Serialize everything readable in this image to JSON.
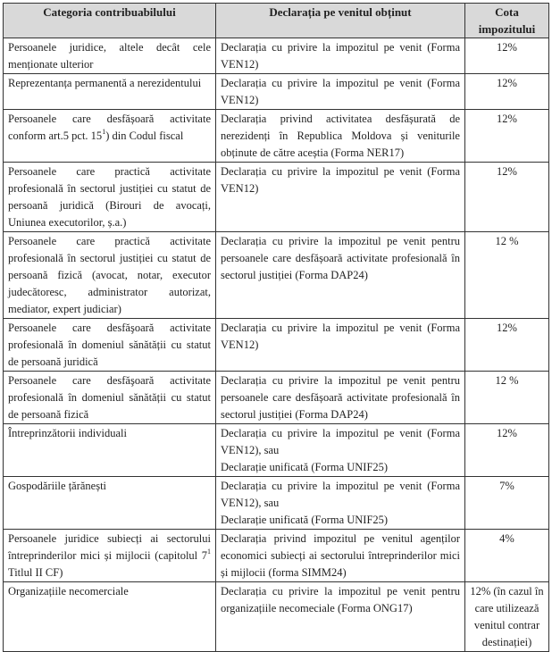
{
  "headers": [
    "Categoria contribuabilului",
    "Declarația pe venitul obținut",
    "Cota impozitului"
  ],
  "rows": [
    {
      "category": "Persoanele juridice, altele decât cele menționate ulterior",
      "declaration": "Declarația cu privire la impozitul pe venit (Forma VEN12)",
      "rate": "12%"
    },
    {
      "category": "Reprezentanța permanentă a nerezidentului",
      "declaration": "Declarația cu privire la impozitul pe venit (Forma VEN12)",
      "rate": "12%"
    },
    {
      "category_before": "Persoanele care desfășoară activitate conform art.5 pct. 15",
      "category_sup": "1",
      "category_after": ") din Codul fiscal",
      "declaration": "Declarația privind activitatea desfășurată de nerezidenți în Republica Moldova și veniturile obținute de către aceștia (Forma NER17)",
      "rate": "12%"
    },
    {
      "category": "Persoanele care practică activitate profesională în sectorul justiției cu statut de persoană juridică (Birouri de avocați, Uniunea executorilor, ș.a.)",
      "declaration": "Declarația cu privire la impozitul pe venit (Forma VEN12)",
      "rate": "12%"
    },
    {
      "category": "Persoanele care practică activitate profesională în sectorul justiției cu statut de persoană fizică (avocat, notar, executor judecătoresc, administrator autorizat, mediator, expert judiciar)",
      "declaration": "Declarația cu privire la impozitul pe venit pentru persoanele care desfășoară activitate profesională în sectorul justiției (Forma DAP24)",
      "rate": "12 %"
    },
    {
      "category": "Persoanele care desfăşoară activitate profesională în domeniul sănătății cu statut de persoană juridică",
      "declaration": "Declarația cu privire la impozitul pe venit (Forma VEN12)",
      "rate": "12%"
    },
    {
      "category": "Persoanele care desfăşoară activitate profesională în domeniul sănătății cu statut de persoană fizică",
      "declaration": "Declarația cu privire la impozitul pe venit pentru persoanele care desfășoară activitate profesională în sectorul justiției (Forma DAP24)",
      "rate": "12 %"
    },
    {
      "category": "Întreprinzătorii individuali",
      "declaration": "Declarația cu privire la impozitul pe venit (Forma VEN12), sau",
      "declaration_2": "Declarație unificată (Forma UNIF25)",
      "rate": "12%"
    },
    {
      "category": "Gospodăriile țărănești",
      "declaration": "Declarația cu privire la impozitul pe venit (Forma VEN12), sau",
      "declaration_2": "Declarație unificată (Forma UNIF25)",
      "rate": "7%"
    },
    {
      "category_before": "Persoanele juridice subiecți ai sectorului întreprinderilor mici și mijlocii (capitolul 7",
      "category_sup": "1",
      "category_after": " Titlul II CF)",
      "declaration": "Declarația privind impozitul pe venitul agenților economici subiecți ai sectorului întreprinderilor mici și mijlocii (forma SIMM24)",
      "rate": "4%"
    },
    {
      "category": "Organizațiile necomerciale",
      "declaration": "Declarația cu privire la impozitul pe venit pentru organizațiile necomeciale (Forma ONG17)",
      "rate": "12% (în cazul în care utilizează venitul contrar destinației)"
    }
  ]
}
